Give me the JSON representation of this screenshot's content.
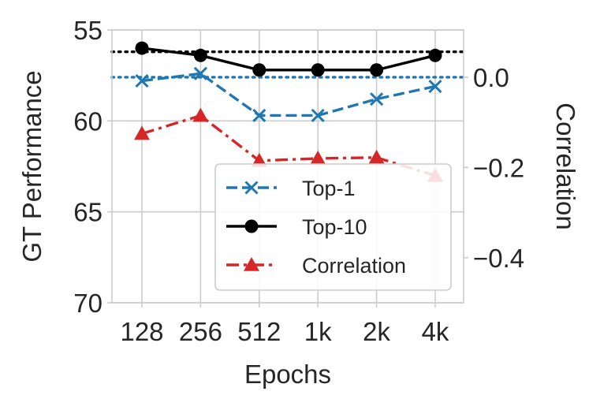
{
  "chart_data": {
    "type": "line",
    "categories": [
      "128",
      "256",
      "512",
      "1k",
      "2k",
      "4k"
    ],
    "xlabel": "Epochs",
    "ylabel": "GT Performance",
    "y2label": "Correlation",
    "ylim": [
      70,
      55
    ],
    "yticks": [
      55,
      60,
      65,
      70
    ],
    "y2lim": [
      -0.5,
      0.105
    ],
    "y2ticks": [
      0.0,
      -0.2,
      -0.4
    ],
    "y2tick_labels": [
      "0.0",
      "−0.2",
      "−0.4"
    ],
    "grid": true,
    "legend_position": "lower-right",
    "series": [
      {
        "name": "Top-1",
        "axis": "left",
        "values": [
          57.8,
          57.4,
          59.7,
          59.7,
          58.8,
          58.1
        ],
        "color": "#1f77b4",
        "marker": "x",
        "linestyle": "dashed",
        "reference": 57.6
      },
      {
        "name": "Top-10",
        "axis": "left",
        "values": [
          56.0,
          56.4,
          57.2,
          57.2,
          57.2,
          56.4
        ],
        "color": "#000000",
        "marker": "circle",
        "linestyle": "solid",
        "reference": 56.2
      },
      {
        "name": "Correlation",
        "axis": "right",
        "values": [
          -0.125,
          -0.085,
          -0.185,
          -0.18,
          -0.178,
          -0.218
        ],
        "color": "#d62728",
        "marker": "triangle",
        "linestyle": "dashdot"
      }
    ]
  }
}
